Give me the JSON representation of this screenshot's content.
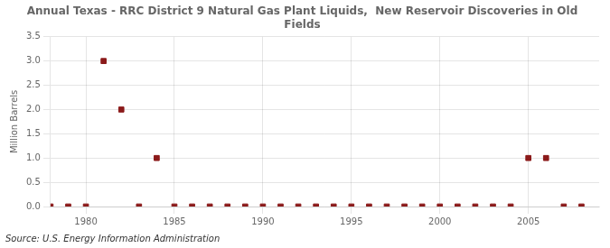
{
  "chart_data": {
    "type": "scatter",
    "title": "Annual Texas - RRC District 9 Natural Gas Plant Liquids,  New Reservoir Discoveries in Old\nFields",
    "y_label": "Million Barrels",
    "annotations": [
      "Source: U.S. Energy Information Administration"
    ],
    "x": [
      1978,
      1979,
      1980,
      1981,
      1982,
      1983,
      1984,
      1985,
      1986,
      1987,
      1988,
      1989,
      1990,
      1991,
      1992,
      1993,
      1994,
      1995,
      1996,
      1997,
      1998,
      1999,
      2000,
      2001,
      2002,
      2003,
      2004,
      2005,
      2006,
      2007,
      2008
    ],
    "values": [
      0,
      0,
      0,
      3.0,
      2.0,
      0,
      1.0,
      0,
      0,
      0,
      0,
      0,
      0,
      0,
      0,
      0,
      0,
      0,
      0,
      0,
      0,
      0,
      0,
      0,
      0,
      0,
      0,
      1.0,
      1.0,
      0,
      0
    ],
    "color": "#8b1a1a",
    "marker": "square",
    "xlim": [
      1978,
      2009
    ],
    "xticks": [
      1980,
      1985,
      1990,
      1995,
      2000,
      2005
    ],
    "ylim": [
      0,
      3.5
    ],
    "yticks": [
      {
        "value": 0,
        "label": "0.0"
      },
      0.5,
      {
        "value": 1,
        "label": "1.0"
      },
      1.5,
      {
        "value": 2,
        "label": "2.0"
      },
      2.5,
      {
        "value": 3,
        "label": "3.0"
      },
      3.5
    ],
    "grid": true
  }
}
